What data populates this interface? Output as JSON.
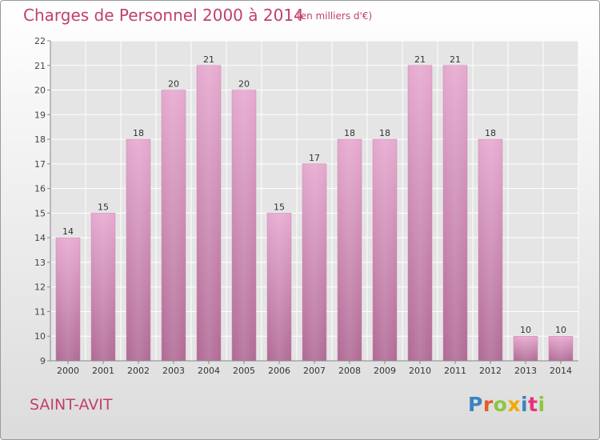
{
  "header": {
    "title": "Charges de Personnel 2000 à 2014",
    "subtitle": "(en milliers d'€)"
  },
  "footer": {
    "commune": "SAINT-AVIT",
    "logo_text": "Proxiti"
  },
  "colors": {
    "title": "#c0406e",
    "bar_top": "#e6a8cf",
    "bar_bottom": "#b06a95",
    "plot_background": "#e5e5e5"
  },
  "chart_data": {
    "type": "bar",
    "categories": [
      "2000",
      "2001",
      "2002",
      "2003",
      "2004",
      "2005",
      "2006",
      "2007",
      "2008",
      "2009",
      "2010",
      "2011",
      "2012",
      "2013",
      "2014"
    ],
    "values": [
      14,
      15,
      18,
      20,
      21,
      20,
      15,
      17,
      18,
      18,
      21,
      21,
      18,
      10,
      10
    ],
    "ylim": [
      9,
      22
    ],
    "yticks": [
      9,
      10,
      11,
      12,
      13,
      14,
      15,
      16,
      17,
      18,
      19,
      20,
      21,
      22
    ],
    "grid": true,
    "data_labels": true
  }
}
